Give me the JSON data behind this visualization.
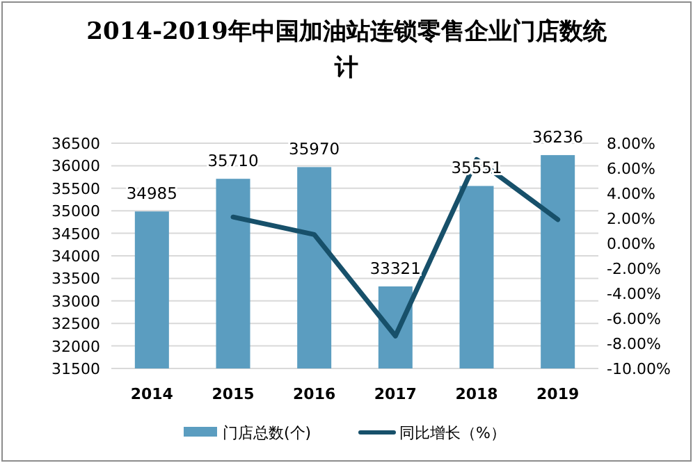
{
  "chart_data": {
    "type": "bar",
    "title": "2014-2019年中国加油站连锁零售企业门店数统计",
    "categories": [
      "2014",
      "2015",
      "2016",
      "2017",
      "2018",
      "2019"
    ],
    "series": [
      {
        "name": "门店总数(个)",
        "color": "#5b9dc0",
        "values": [
          34985,
          35710,
          35970,
          33321,
          35551,
          36236
        ],
        "value_labels": [
          "34985",
          "35710",
          "35970",
          "33321",
          "35551",
          "36236"
        ]
      },
      {
        "name": "同比增长（%）",
        "type": "line",
        "axis": "y2",
        "color": "#17506a",
        "values": [
          null,
          2.1,
          0.7,
          -7.4,
          6.7,
          1.9
        ]
      }
    ],
    "ylim": [
      31500,
      36500
    ],
    "yticks": [
      31500,
      32000,
      32500,
      33000,
      33500,
      34000,
      34500,
      35000,
      35500,
      36000,
      36500
    ],
    "y2lim": [
      -10,
      8
    ],
    "y2ticks": [
      {
        "value": -10,
        "label": "-10.00%"
      },
      {
        "value": -8,
        "label": "-8.00%"
      },
      {
        "value": -6,
        "label": "-6.00%"
      },
      {
        "value": -4,
        "label": "-4.00%"
      },
      {
        "value": -2,
        "label": "-2.00%"
      },
      {
        "value": 0,
        "label": "0.00%"
      },
      {
        "value": 2,
        "label": "2.00%"
      },
      {
        "value": 4,
        "label": "4.00%"
      },
      {
        "value": 6,
        "label": "6.00%"
      },
      {
        "value": 8,
        "label": "8.00%"
      }
    ],
    "grid": "y",
    "legend": "bottom"
  }
}
